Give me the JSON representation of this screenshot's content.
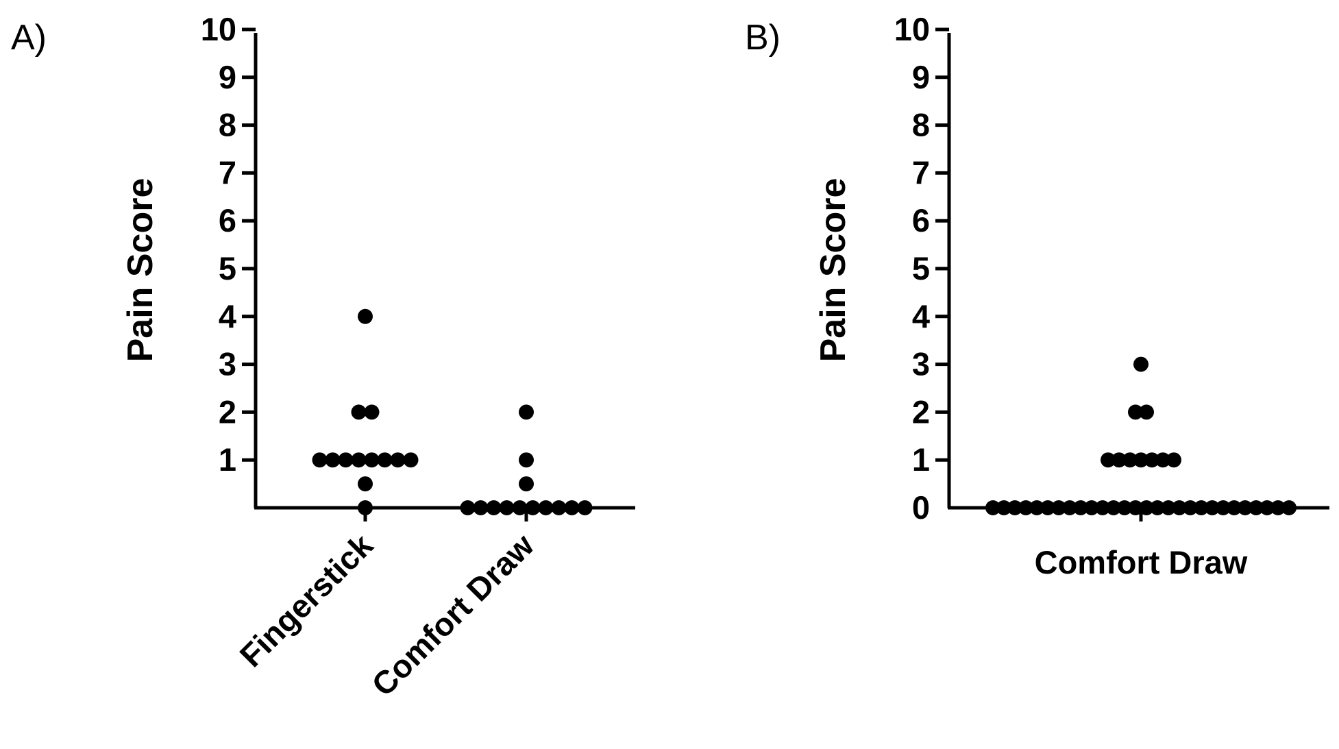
{
  "chart_data": [
    {
      "type": "scatter",
      "panel_label": "A)",
      "title": "",
      "ylabel": "Pain Score",
      "xlabel": "",
      "ylim": [
        0,
        10
      ],
      "yticks": [
        "1",
        "2",
        "3",
        "4",
        "5",
        "6",
        "7",
        "8",
        "9",
        "10"
      ],
      "categories": [
        "Fingerstick",
        "Comfort Draw"
      ],
      "grid": false,
      "series": [
        {
          "category": "Fingerstick",
          "values": [
            4,
            2,
            2,
            1,
            1,
            1,
            1,
            1,
            1,
            1,
            1,
            0.5,
            0
          ]
        },
        {
          "category": "Comfort Draw",
          "values": [
            2,
            1,
            0.5,
            0,
            0,
            0,
            0,
            0,
            0,
            0,
            0,
            0,
            0
          ]
        }
      ]
    },
    {
      "type": "scatter",
      "panel_label": "B)",
      "title": "",
      "ylabel": "Pain Score",
      "xlabel": "",
      "ylim": [
        0,
        10
      ],
      "yticks": [
        "0",
        "1",
        "2",
        "3",
        "4",
        "5",
        "6",
        "7",
        "8",
        "9",
        "10"
      ],
      "categories": [
        "Comfort Draw"
      ],
      "grid": false,
      "series": [
        {
          "category": "Comfort Draw",
          "values": [
            3,
            2,
            2,
            1,
            1,
            1,
            1,
            1,
            1,
            1,
            0,
            0,
            0,
            0,
            0,
            0,
            0,
            0,
            0,
            0,
            0,
            0,
            0,
            0,
            0,
            0,
            0,
            0,
            0,
            0,
            0,
            0,
            0,
            0,
            0,
            0,
            0,
            0
          ]
        }
      ]
    }
  ]
}
